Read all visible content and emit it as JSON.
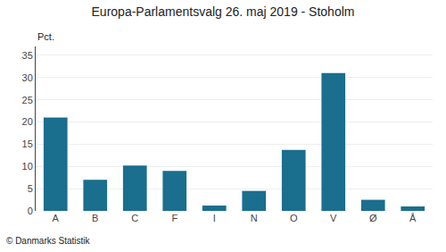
{
  "chart_data": {
    "type": "bar",
    "title": "Europa-Parlamentsvalg 26. maj 2019 - Stoholm",
    "categories": [
      "A",
      "B",
      "C",
      "F",
      "I",
      "N",
      "O",
      "V",
      "Ø",
      "Å"
    ],
    "values": [
      21.0,
      7.0,
      10.2,
      9.0,
      1.2,
      4.5,
      13.7,
      31.0,
      2.5,
      1.0
    ],
    "color": "#1a6e8e",
    "ylabel": "Pct.",
    "annotations": [
      "© Danmarks Statistik"
    ],
    "ylim": [
      0,
      37
    ],
    "yticks": [
      0,
      5,
      10,
      15,
      20,
      25,
      30,
      35
    ],
    "grid": true
  }
}
